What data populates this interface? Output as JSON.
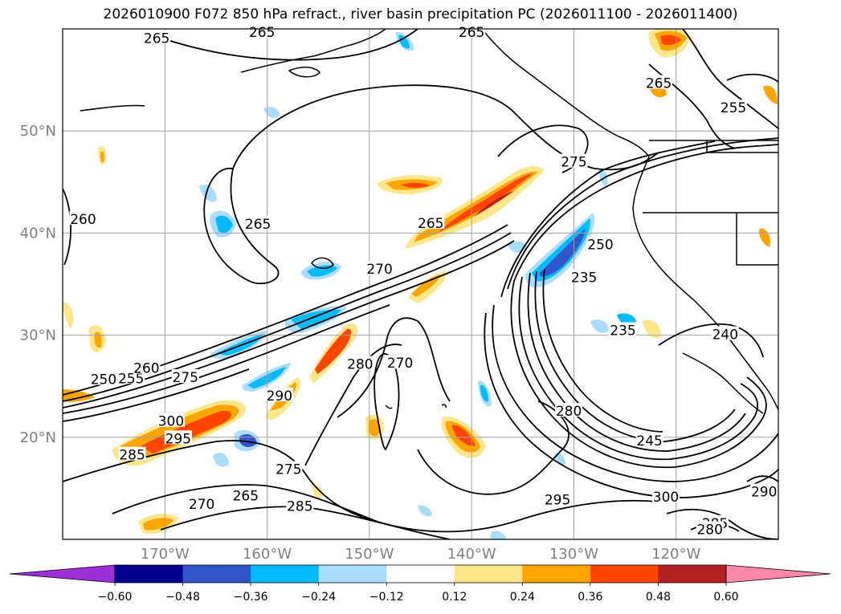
{
  "title": "2026010900 F072 850 hPa refract., river basin precipitation PC (2026011100 - 2026011400)",
  "map": {
    "lon_range": [
      -180,
      -110
    ],
    "lat_range": [
      10,
      60
    ],
    "lat_gridlines": [
      20,
      30,
      40,
      50
    ],
    "lon_gridlines": [
      -170,
      -160,
      -150,
      -140,
      -130,
      -120
    ],
    "lat_labels": [
      "20°N",
      "30°N",
      "40°N",
      "50°N"
    ],
    "lon_labels": [
      "170°W",
      "160°W",
      "150°W",
      "140°W",
      "130°W",
      "120°W"
    ],
    "label_color": "#808080",
    "grid": true
  },
  "contour_labels": [
    {
      "text": "265",
      "lon": -170.8,
      "lat": 59.0
    },
    {
      "text": "265",
      "lon": -160.5,
      "lat": 59.6
    },
    {
      "text": "265",
      "lon": -140.0,
      "lat": 59.6
    },
    {
      "text": "265",
      "lon": -121.7,
      "lat": 54.6
    },
    {
      "text": "255",
      "lon": -114.4,
      "lat": 52.2
    },
    {
      "text": "275",
      "lon": -130.0,
      "lat": 46.9
    },
    {
      "text": "260",
      "lon": -178.0,
      "lat": 41.3
    },
    {
      "text": "265",
      "lon": -160.9,
      "lat": 40.8
    },
    {
      "text": "265",
      "lon": -144.0,
      "lat": 40.9
    },
    {
      "text": "250",
      "lon": -127.4,
      "lat": 38.8
    },
    {
      "text": "270",
      "lon": -149.0,
      "lat": 36.4
    },
    {
      "text": "235",
      "lon": -129.0,
      "lat": 35.6
    },
    {
      "text": "235",
      "lon": -125.2,
      "lat": 30.4
    },
    {
      "text": "240",
      "lon": -115.2,
      "lat": 30.0
    },
    {
      "text": "250",
      "lon": -176.0,
      "lat": 25.6
    },
    {
      "text": "255",
      "lon": -173.3,
      "lat": 25.7
    },
    {
      "text": "260",
      "lon": -171.8,
      "lat": 26.7
    },
    {
      "text": "275",
      "lon": -168.0,
      "lat": 25.8
    },
    {
      "text": "280",
      "lon": -150.9,
      "lat": 27.1
    },
    {
      "text": "270",
      "lon": -147.0,
      "lat": 27.2
    },
    {
      "text": "290",
      "lon": -158.8,
      "lat": 24.0
    },
    {
      "text": "300",
      "lon": -169.4,
      "lat": 21.5
    },
    {
      "text": "295",
      "lon": -168.7,
      "lat": 19.8
    },
    {
      "text": "285",
      "lon": -173.2,
      "lat": 18.2
    },
    {
      "text": "280",
      "lon": -130.5,
      "lat": 22.5
    },
    {
      "text": "245",
      "lon": -122.6,
      "lat": 19.6
    },
    {
      "text": "275",
      "lon": -157.9,
      "lat": 16.8
    },
    {
      "text": "265",
      "lon": -162.1,
      "lat": 14.2
    },
    {
      "text": "270",
      "lon": -166.4,
      "lat": 13.4
    },
    {
      "text": "285",
      "lon": -156.8,
      "lat": 13.2
    },
    {
      "text": "295",
      "lon": -131.6,
      "lat": 13.8
    },
    {
      "text": "300",
      "lon": -121.0,
      "lat": 14.1
    },
    {
      "text": "290",
      "lon": -111.4,
      "lat": 14.6
    },
    {
      "text": "285",
      "lon": -116.2,
      "lat": 11.5
    },
    {
      "text": "280",
      "lon": -116.7,
      "lat": 10.9
    }
  ],
  "colorbar": {
    "ticks": [
      "−0.60",
      "−0.48",
      "−0.36",
      "−0.24",
      "−0.12",
      "0.12",
      "0.24",
      "0.36",
      "0.48",
      "0.60"
    ],
    "under_color": "#9b30d6",
    "over_color": "#ff88aa",
    "bins": [
      {
        "range": "-0.60 to -0.48",
        "color": "#000090"
      },
      {
        "range": "-0.48 to -0.36",
        "color": "#3355cc"
      },
      {
        "range": "-0.36 to -0.24",
        "color": "#00bbff"
      },
      {
        "range": "-0.24 to -0.12",
        "color": "#aaddff"
      },
      {
        "range": "-0.12 to 0.12",
        "color": "#ffffff"
      },
      {
        "range": "0.12 to 0.24",
        "color": "#ffe68a"
      },
      {
        "range": "0.24 to 0.36",
        "color": "#ffa500"
      },
      {
        "range": "0.36 to 0.48",
        "color": "#ff4500"
      },
      {
        "range": "0.48 to 0.60",
        "color": "#b22222"
      }
    ]
  }
}
